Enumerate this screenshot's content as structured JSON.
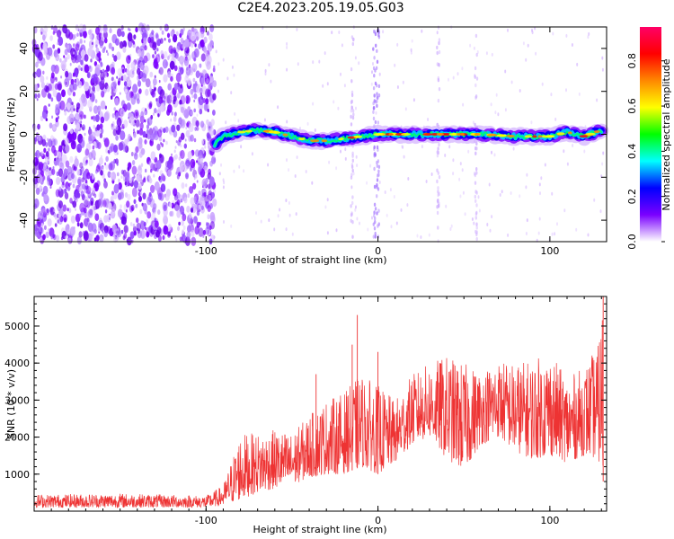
{
  "title": "C2E4.2023.205.19.05.G03",
  "chart_data": [
    {
      "type": "heatmap",
      "title": "C2E4.2023.205.19.05.G03",
      "xlabel": "Height of straight line (km)",
      "ylabel": "Frequency (Hz)",
      "xlim": [
        -200,
        133
      ],
      "ylim": [
        -50,
        50
      ],
      "x_ticks": [
        -100,
        0,
        100
      ],
      "y_ticks": [
        -40,
        -20,
        0,
        20,
        40
      ],
      "colorbar": {
        "label": "Normalized spectral amplitude",
        "range": [
          0,
          0.95
        ],
        "ticks": [
          0.0,
          0.2,
          0.4,
          0.6,
          0.8
        ],
        "colormap": [
          "#ffffff",
          "#7a00ff",
          "#0000ff",
          "#00ffff",
          "#00ff00",
          "#ffff00",
          "#ff8800",
          "#ff0000",
          "#ff0066"
        ]
      },
      "signal_track": [
        {
          "x": -95,
          "freq": -5
        },
        {
          "x": -90,
          "freq": -1
        },
        {
          "x": -80,
          "freq": 1
        },
        {
          "x": -70,
          "freq": 2
        },
        {
          "x": -60,
          "freq": 1
        },
        {
          "x": -50,
          "freq": -1
        },
        {
          "x": -40,
          "freq": -3
        },
        {
          "x": -30,
          "freq": -3
        },
        {
          "x": -20,
          "freq": -2
        },
        {
          "x": -10,
          "freq": -1
        },
        {
          "x": 0,
          "freq": 0
        },
        {
          "x": 20,
          "freq": 0
        },
        {
          "x": 40,
          "freq": 0
        },
        {
          "x": 60,
          "freq": 0
        },
        {
          "x": 80,
          "freq": -1
        },
        {
          "x": 100,
          "freq": -1
        },
        {
          "x": 110,
          "freq": 1
        },
        {
          "x": 120,
          "freq": -1
        },
        {
          "x": 130,
          "freq": 2
        }
      ],
      "noise_region": [
        -200,
        -95
      ]
    },
    {
      "type": "line",
      "xlabel": "Height of straight line (km)",
      "ylabel": "SNR (10 * v/v)",
      "xlim": [
        -200,
        133
      ],
      "ylim": [
        0,
        5800
      ],
      "x_ticks": [
        -100,
        0,
        100
      ],
      "y_ticks": [
        1000,
        2000,
        3000,
        4000,
        5000
      ],
      "color": "#ee3333",
      "envelope": [
        {
          "x": -200,
          "low": 100,
          "high": 450
        },
        {
          "x": -150,
          "low": 100,
          "high": 480
        },
        {
          "x": -100,
          "low": 100,
          "high": 420
        },
        {
          "x": -90,
          "low": 150,
          "high": 700
        },
        {
          "x": -80,
          "low": 300,
          "high": 2100
        },
        {
          "x": -70,
          "low": 500,
          "high": 2100
        },
        {
          "x": -60,
          "low": 600,
          "high": 2200
        },
        {
          "x": -50,
          "low": 700,
          "high": 2100
        },
        {
          "x": -40,
          "low": 900,
          "high": 2600
        },
        {
          "x": -30,
          "low": 1000,
          "high": 3000
        },
        {
          "x": -20,
          "low": 1000,
          "high": 3200
        },
        {
          "x": -10,
          "low": 1200,
          "high": 3700
        },
        {
          "x": 0,
          "low": 1000,
          "high": 3400
        },
        {
          "x": 10,
          "low": 1300,
          "high": 3000
        },
        {
          "x": 20,
          "low": 1800,
          "high": 3700
        },
        {
          "x": 30,
          "low": 2000,
          "high": 4000
        },
        {
          "x": 40,
          "low": 1400,
          "high": 4200
        },
        {
          "x": 50,
          "low": 1100,
          "high": 4000
        },
        {
          "x": 60,
          "low": 1800,
          "high": 3800
        },
        {
          "x": 70,
          "low": 2000,
          "high": 4100
        },
        {
          "x": 80,
          "low": 1600,
          "high": 4000
        },
        {
          "x": 90,
          "low": 1400,
          "high": 4100
        },
        {
          "x": 100,
          "low": 1500,
          "high": 4300
        },
        {
          "x": 110,
          "low": 1300,
          "high": 3600
        },
        {
          "x": 120,
          "low": 1500,
          "high": 3900
        },
        {
          "x": 128,
          "low": 1400,
          "high": 4500
        },
        {
          "x": 131,
          "low": 800,
          "high": 5800
        }
      ],
      "spikes": [
        {
          "x": -36,
          "value": 3700
        },
        {
          "x": -12,
          "value": 5300
        },
        {
          "x": -15,
          "value": 4500
        },
        {
          "x": 0,
          "value": 4300
        },
        {
          "x": 131,
          "value": 5800
        }
      ]
    }
  ]
}
